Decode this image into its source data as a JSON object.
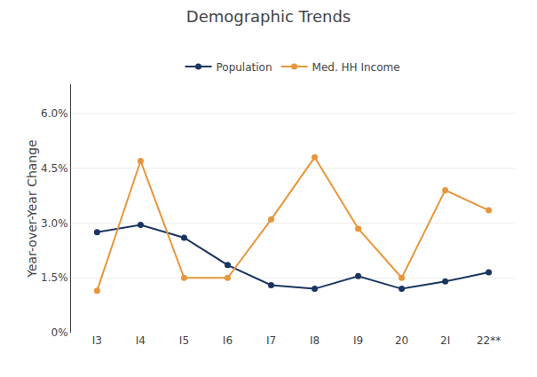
{
  "chart_data": {
    "type": "line",
    "title": "Demographic Trends",
    "ylabel": "Year-over-Year Change",
    "categories": [
      "I3",
      "I4",
      "I5",
      "I6",
      "I7",
      "I8",
      "I9",
      "20",
      "2I",
      "22**"
    ],
    "series": [
      {
        "name": "Population",
        "color": "#1a3560",
        "marker": "circle",
        "values": [
          2.75,
          2.95,
          2.6,
          1.85,
          1.3,
          1.2,
          1.55,
          1.2,
          1.4,
          1.65
        ]
      },
      {
        "name": "Med. HH Income",
        "color": "#e8963c",
        "marker": "circle",
        "values": [
          1.15,
          4.7,
          1.5,
          1.5,
          3.1,
          4.8,
          2.85,
          1.5,
          3.9,
          3.35
        ]
      }
    ],
    "ylim": [
      0.0,
      6.8
    ],
    "yticks": [
      {
        "value": 0.0,
        "label": "0%"
      },
      {
        "value": 1.5,
        "label": "1.5%"
      },
      {
        "value": 3.0,
        "label": "3.0%"
      },
      {
        "value": 4.5,
        "label": "4.5%"
      },
      {
        "value": 6.0,
        "label": "6.0%"
      }
    ],
    "grid": true,
    "legend": "top"
  }
}
